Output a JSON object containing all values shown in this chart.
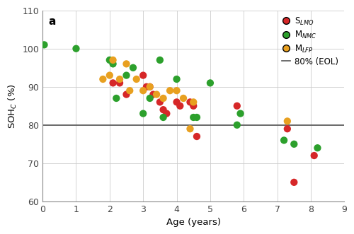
{
  "title_label": "a",
  "xlabel": "Age (years)",
  "ylabel": "SOH$_{C}$ (%)",
  "xlim": [
    0,
    9
  ],
  "ylim": [
    60,
    110
  ],
  "xticks": [
    0,
    1,
    2,
    3,
    4,
    5,
    6,
    7,
    8,
    9
  ],
  "yticks": [
    60,
    70,
    80,
    90,
    100,
    110
  ],
  "eol_line": 80,
  "plot_bg": "#ffffff",
  "fig_bg": "#ffffff",
  "grid_color": "#cccccc",
  "S_LMO": {
    "color": "#d62728",
    "x": [
      2.1,
      2.3,
      2.5,
      3.0,
      3.1,
      3.2,
      3.3,
      3.5,
      3.6,
      3.7,
      4.0,
      4.1,
      4.4,
      4.5,
      4.6,
      5.8,
      7.3,
      7.5,
      8.1
    ],
    "y": [
      91,
      91,
      88,
      93,
      90,
      90,
      88,
      86,
      84,
      83,
      86,
      85,
      86,
      85,
      77,
      85,
      79,
      65,
      72
    ]
  },
  "M_NMC": {
    "color": "#2ca02c",
    "x": [
      0.05,
      1.0,
      2.0,
      2.1,
      2.2,
      2.5,
      2.7,
      3.0,
      3.2,
      3.5,
      3.6,
      4.0,
      4.5,
      4.6,
      5.0,
      5.8,
      5.9,
      7.2,
      7.5,
      8.2
    ],
    "y": [
      101,
      100,
      97,
      96,
      87,
      93,
      95,
      83,
      87,
      97,
      82,
      92,
      82,
      82,
      91,
      80,
      83,
      76,
      75,
      74
    ]
  },
  "M_LFP": {
    "color": "#e8a020",
    "x": [
      1.8,
      2.0,
      2.1,
      2.3,
      2.5,
      2.6,
      2.8,
      3.0,
      3.2,
      3.4,
      3.6,
      3.8,
      4.0,
      4.2,
      4.4,
      4.5,
      7.3
    ],
    "y": [
      92,
      93,
      97,
      92,
      96,
      89,
      92,
      89,
      90,
      88,
      87,
      89,
      89,
      87,
      79,
      86,
      81
    ]
  },
  "legend_labels": [
    "S$_{LMO}$",
    "M$_{NMC}$",
    "M$_{LFP}$",
    "80% (EOL)"
  ],
  "marker_size": 55,
  "dot_edgewidth": 0.5
}
